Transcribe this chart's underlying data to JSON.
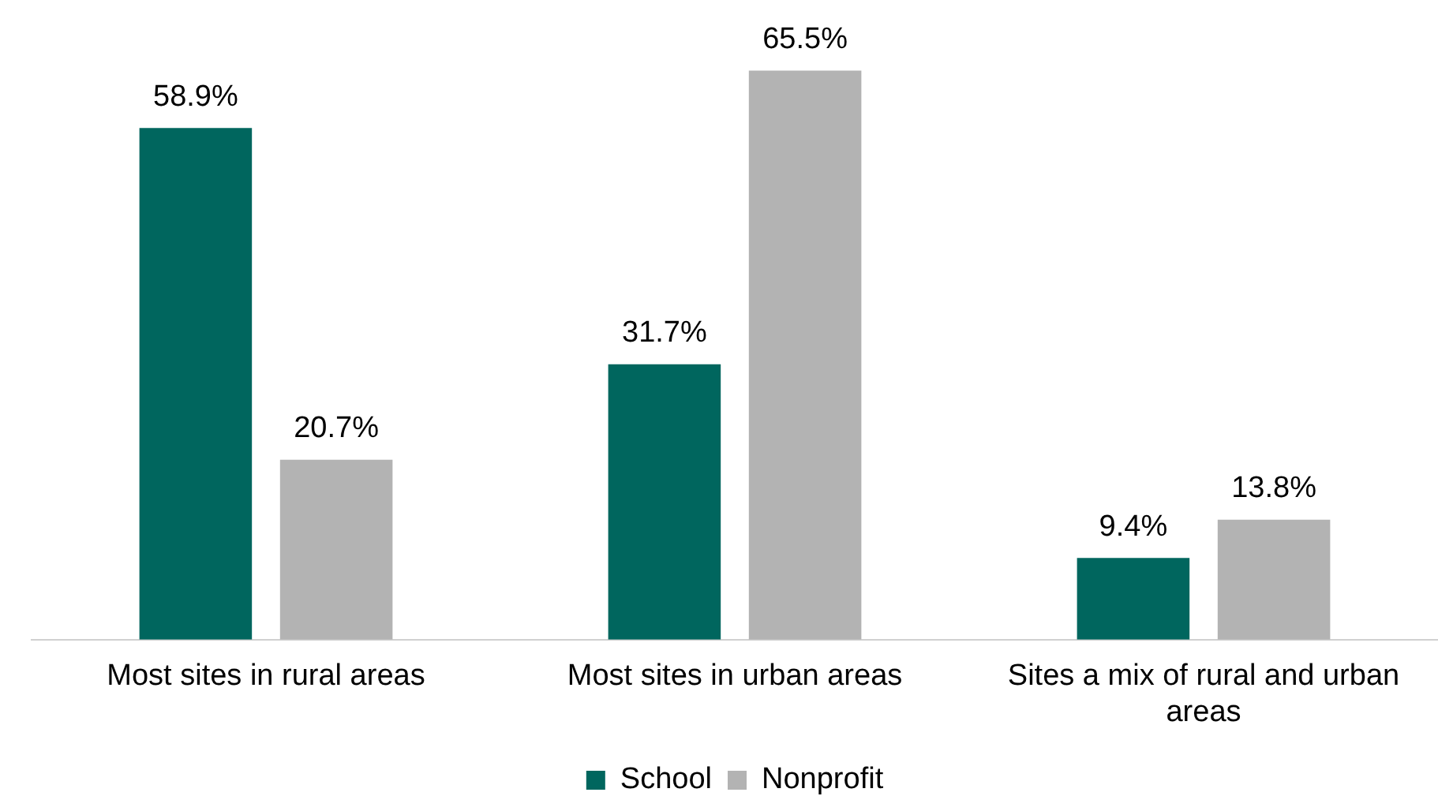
{
  "chart_data": {
    "type": "bar",
    "categories": [
      "Most sites in rural areas",
      "Most sites in urban areas",
      "Sites a mix of rural and urban areas"
    ],
    "series": [
      {
        "name": "School",
        "color": "#00665e",
        "values": [
          58.9,
          31.7,
          9.4
        ],
        "value_labels": [
          "58.9%",
          "31.7%",
          "9.4%"
        ]
      },
      {
        "name": "Nonprofit",
        "color": "#b3b3b3",
        "values": [
          20.7,
          65.5,
          13.8
        ],
        "value_labels": [
          "20.7%",
          "65.5%",
          "13.8%"
        ]
      }
    ],
    "legend": "bottom"
  }
}
